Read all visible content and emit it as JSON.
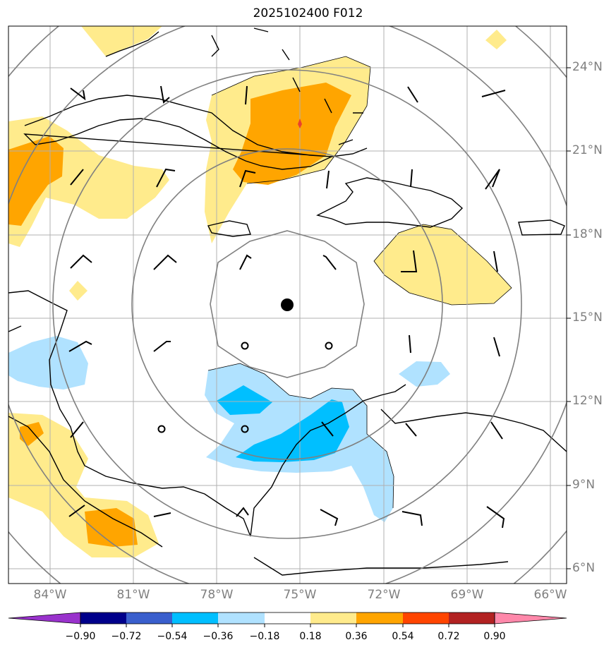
{
  "title": "2025102400 F012",
  "lat_labels": [
    "24°N",
    "21°N",
    "18°N",
    "15°N",
    "12°N",
    "9°N",
    "6°N"
  ],
  "lon_labels": [
    "84°W",
    "81°W",
    "78°W",
    "75°W",
    "72°W",
    "69°W",
    "66°W"
  ],
  "colorbar": {
    "ticks": [
      "−0.90",
      "−0.72",
      "−0.54",
      "−0.36",
      "−0.18",
      "0.18",
      "0.36",
      "0.54",
      "0.72",
      "0.90"
    ],
    "colors": [
      "#9932cc",
      "#00008b",
      "#3a5fcd",
      "#00bfff",
      "#b0e2ff",
      "#ffffff",
      "#ffeb8c",
      "#ffa500",
      "#ff4500",
      "#b22222",
      "#ff88aa"
    ]
  },
  "colors": {
    "fill_light_yellow": "#ffeb8c",
    "fill_orange": "#ffa500",
    "fill_light_blue": "#b0e2ff",
    "fill_blue": "#00bfff",
    "grid": "#b0b0b0",
    "range_rings": "#808080",
    "center_marker": "#000000"
  }
}
